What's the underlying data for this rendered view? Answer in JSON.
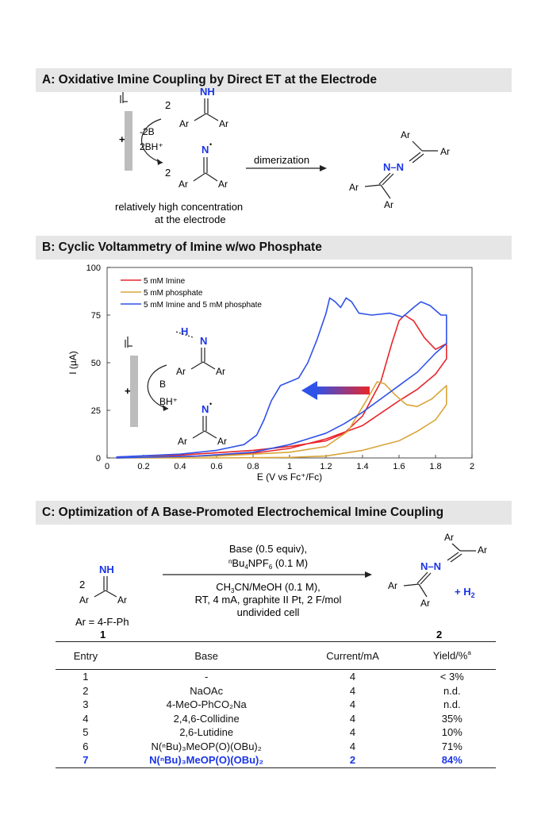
{
  "sections": {
    "a_title": "A: Oxidative Imine Coupling by Direct ET at the Electrode",
    "b_title": "B: Cyclic Voltammetry of Imine w/wo Phosphate",
    "c_title": "C: Optimization of A Base-Promoted Electrochemical Imine Coupling"
  },
  "scheme_a": {
    "coef": "2",
    "imine_nh": "NH",
    "ar": "Ar",
    "minus_2b": "-2B",
    "plus_2bh": "2BH⁺",
    "plus_sign": "+",
    "radical_n": "N",
    "radical_dot": "•",
    "arrow_label": "dimerization",
    "azine": "N–N",
    "note_line1": "relatively high concentration",
    "note_line2": "at the electrode"
  },
  "inset_b": {
    "h_label": "H",
    "n_label": "N",
    "b_label": "B",
    "bh_label": "BH⁺",
    "plus_sign": "+",
    "ar": "Ar",
    "radical_n": "N",
    "radical_dot": "•"
  },
  "chart_data": {
    "type": "line",
    "title": "",
    "xlabel": "E (V vs Fc⁺/Fc)",
    "ylabel": "I (μA)",
    "xlim": [
      0,
      2
    ],
    "ylim": [
      0,
      100
    ],
    "x_ticks": [
      "0",
      "0.2",
      "0.4",
      "0.6",
      "0.8",
      "1",
      "1.2",
      "1.4",
      "1.6",
      "1.8",
      "2"
    ],
    "y_ticks": [
      "0",
      "25",
      "50",
      "75",
      "100"
    ],
    "legend_position": "top-left",
    "series": [
      {
        "name": "5 mM Imine",
        "color": "#e8262b",
        "points": [
          [
            0.05,
            0.5
          ],
          [
            0.4,
            1.5
          ],
          [
            0.8,
            4
          ],
          [
            1.0,
            6
          ],
          [
            1.2,
            9
          ],
          [
            1.3,
            13
          ],
          [
            1.4,
            22
          ],
          [
            1.5,
            40
          ],
          [
            1.56,
            60
          ],
          [
            1.6,
            72
          ],
          [
            1.63,
            75
          ],
          [
            1.68,
            72
          ],
          [
            1.74,
            63
          ],
          [
            1.8,
            57
          ],
          [
            1.86,
            60
          ],
          [
            1.86,
            52
          ],
          [
            1.8,
            44
          ],
          [
            1.7,
            36
          ],
          [
            1.6,
            30
          ],
          [
            1.4,
            17
          ],
          [
            1.2,
            10
          ],
          [
            1.0,
            5
          ],
          [
            0.8,
            2.5
          ],
          [
            0.4,
            0.5
          ],
          [
            0.05,
            0
          ]
        ]
      },
      {
        "name": "5 mM phosphate",
        "color": "#d9a53a",
        "points": [
          [
            0.05,
            0.3
          ],
          [
            0.6,
            1
          ],
          [
            1.0,
            3
          ],
          [
            1.2,
            6
          ],
          [
            1.32,
            14
          ],
          [
            1.42,
            30
          ],
          [
            1.48,
            40
          ],
          [
            1.52,
            39
          ],
          [
            1.58,
            33
          ],
          [
            1.64,
            28
          ],
          [
            1.7,
            27
          ],
          [
            1.78,
            31
          ],
          [
            1.86,
            38
          ],
          [
            1.86,
            28
          ],
          [
            1.8,
            20
          ],
          [
            1.7,
            14
          ],
          [
            1.6,
            9
          ],
          [
            1.4,
            4
          ],
          [
            1.2,
            1
          ],
          [
            1.0,
            0.3
          ],
          [
            0.6,
            0
          ],
          [
            0.05,
            0
          ]
        ]
      },
      {
        "name": "5 mM Imine and 5 mM phosphate",
        "color": "#2f52e8",
        "points": [
          [
            0.05,
            0.5
          ],
          [
            0.4,
            2
          ],
          [
            0.6,
            4
          ],
          [
            0.75,
            7
          ],
          [
            0.82,
            12
          ],
          [
            0.86,
            20
          ],
          [
            0.9,
            30
          ],
          [
            0.95,
            38
          ],
          [
            1.0,
            40
          ],
          [
            1.05,
            42
          ],
          [
            1.1,
            50
          ],
          [
            1.15,
            62
          ],
          [
            1.2,
            76
          ],
          [
            1.22,
            84
          ],
          [
            1.25,
            82
          ],
          [
            1.28,
            79
          ],
          [
            1.31,
            84
          ],
          [
            1.34,
            82
          ],
          [
            1.38,
            76
          ],
          [
            1.45,
            75
          ],
          [
            1.55,
            76
          ],
          [
            1.62,
            74
          ],
          [
            1.68,
            79
          ],
          [
            1.72,
            82
          ],
          [
            1.77,
            80
          ],
          [
            1.83,
            75
          ],
          [
            1.86,
            75
          ],
          [
            1.86,
            60
          ],
          [
            1.8,
            55
          ],
          [
            1.7,
            45
          ],
          [
            1.6,
            38
          ],
          [
            1.5,
            31
          ],
          [
            1.4,
            24
          ],
          [
            1.3,
            18
          ],
          [
            1.2,
            13
          ],
          [
            1.0,
            7
          ],
          [
            0.8,
            3
          ],
          [
            0.5,
            1
          ],
          [
            0.05,
            0
          ]
        ]
      }
    ]
  },
  "scheme_c": {
    "coef": "2",
    "imine_nh": "NH",
    "ar": "Ar",
    "ar_def": "Ar = 4-F-Ph",
    "label_1": "1",
    "label_2": "2",
    "cond_top1": "Base (0.5 equiv),",
    "cond_top2_pre": "",
    "cond_top2_sup": "n",
    "cond_top2_main": "Bu",
    "cond_top2_sub": "4",
    "cond_top2_post": "NPF",
    "cond_top2_sub2": "6",
    "cond_top2_end": " (0.1 M)",
    "cond_b1_pre": "CH",
    "cond_b1_sub": "3",
    "cond_b1_post": "CN/MeOH (0.1 M),",
    "cond_b2": "RT, 4 mA, graphite II Pt, 2 F/mol",
    "cond_b3": "undivided cell",
    "azine": "N–N",
    "h2_plus": "+ H",
    "h2_sub": "2"
  },
  "table": {
    "headers": {
      "entry": "Entry",
      "base": "Base",
      "current": "Current/mA",
      "yield": "Yield/%",
      "yield_sup": "a"
    },
    "rows": [
      {
        "entry": "1",
        "base": "-",
        "current": "4",
        "yield": "< 3%"
      },
      {
        "entry": "2",
        "base": "NaOAc",
        "current": "4",
        "yield": "n.d."
      },
      {
        "entry": "3",
        "base": "4-MeO-PhCO₂Na",
        "current": "4",
        "yield": "n.d."
      },
      {
        "entry": "4",
        "base": "2,4,6-Collidine",
        "current": "4",
        "yield": "35%"
      },
      {
        "entry": "5",
        "base": "2,6-Lutidine",
        "current": "4",
        "yield": "10%"
      },
      {
        "entry": "6",
        "base": "N(ⁿBu)₃MeOP(O)(OBu)₂",
        "current": "4",
        "yield": "71%"
      },
      {
        "entry": "7",
        "base": "N(ⁿBu)₃MeOP(O)(OBu)₂",
        "current": "2",
        "yield": "84%"
      }
    ]
  },
  "colors": {
    "accent_blue": "#1a35e6",
    "electrode_gray": "#bdbdbd",
    "bar_gray": "#e6e6e6"
  }
}
